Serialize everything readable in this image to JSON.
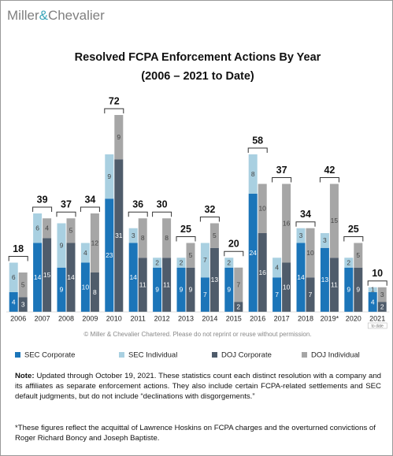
{
  "logo": {
    "name": "Miller",
    "amp": "&",
    "name2": "Chevalier"
  },
  "chart_data": {
    "type": "stacked_bar",
    "title": "Resolved FCPA Enforcement Actions By Year",
    "subtitle": "(2006 – 2021 to Date)",
    "categories": [
      "2006",
      "2007",
      "2008",
      "2009",
      "2010",
      "2011",
      "2012",
      "2013",
      "2014",
      "2015",
      "2016",
      "2017",
      "2018",
      "2019*",
      "2020",
      "2021"
    ],
    "last_category_note": "to date",
    "series": [
      {
        "name": "SEC Corporate",
        "color": "#1b75b9",
        "stack": "SEC",
        "values": [
          4,
          14,
          9,
          10,
          23,
          14,
          9,
          9,
          7,
          9,
          24,
          7,
          14,
          13,
          9,
          4
        ]
      },
      {
        "name": "SEC Individual",
        "color": "#a9d0e1",
        "stack": "SEC",
        "values": [
          6,
          6,
          9,
          4,
          9,
          3,
          2,
          2,
          7,
          2,
          8,
          4,
          3,
          3,
          2,
          1
        ]
      },
      {
        "name": "DOJ Corporate",
        "color": "#4f5c6b",
        "stack": "DOJ",
        "values": [
          3,
          15,
          14,
          8,
          31,
          11,
          11,
          9,
          13,
          2,
          16,
          10,
          7,
          11,
          9,
          2
        ]
      },
      {
        "name": "DOJ Individual",
        "color": "#a6a6a6",
        "stack": "DOJ",
        "values": [
          5,
          4,
          5,
          12,
          9,
          8,
          8,
          5,
          5,
          7,
          10,
          16,
          10,
          15,
          5,
          3
        ]
      }
    ],
    "totals": [
      18,
      39,
      37,
      34,
      72,
      36,
      30,
      25,
      32,
      20,
      58,
      37,
      34,
      42,
      25,
      10
    ],
    "copyright": "© Miller & Chevalier Chartered. Please do not reprint or reuse without permission."
  },
  "note": {
    "label": "Note:",
    "text": "Updated through October 19, 2021. These statistics count each distinct resolution with a company and its affiliates as separate enforcement actions. They also include certain FCPA-related settlements and SEC default judgments, but do not include “declinations with disgorgements.”"
  },
  "footnote": "*These figures reflect the acquittal of Lawrence Hoskins on FCPA charges and the overturned convictions of Roger Richard Boncy and Joseph Baptiste."
}
